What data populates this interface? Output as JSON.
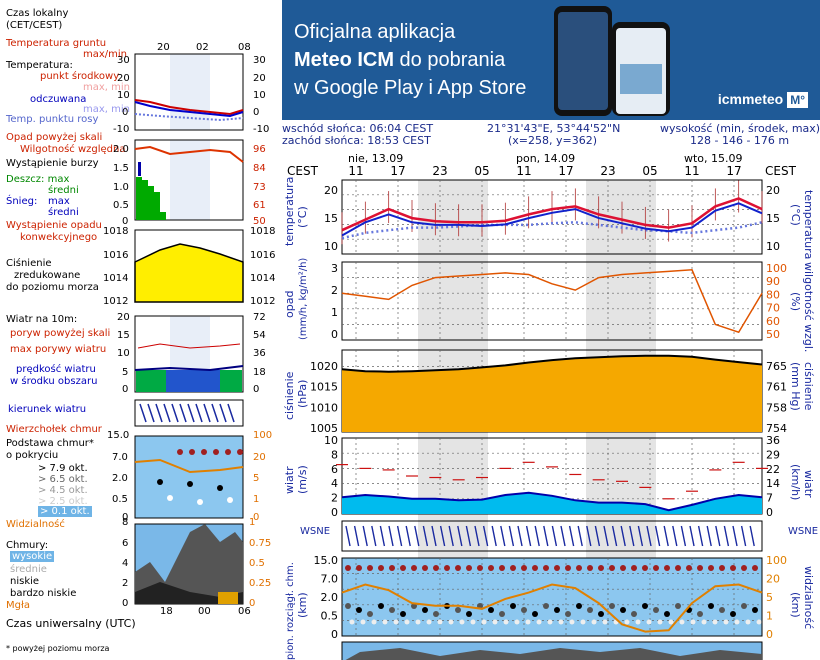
{
  "banner": {
    "line1": "Oficjalna aplikacja",
    "line2_bold": "Meteo ICM",
    "line2_rest": " do pobrania",
    "line3": "w Google Play i App Store",
    "logo": "icmmeteo",
    "logo_badge": "M°"
  },
  "info": {
    "sunrise": "wschód słońca: 06:04 CEST",
    "sunset": "zachód słońca: 18:53 CEST",
    "coords": "21°31'43\"E, 53°44'52\"N",
    "grid": "(x=258, y=362)",
    "elev_title": "wysokość (min, środek, max)",
    "elev": "128 - 146 - 176 m"
  },
  "legend": {
    "local_time": "Czas lokalny",
    "local_time2": "(CET/CEST)",
    "local_ticks": [
      "20",
      "02",
      "08"
    ],
    "ground_temp": "Temperatura gruntu",
    "max_min": "max/min",
    "temperature": "Temperatura:",
    "mid_point": "punkt środkowy",
    "max_min2": "max, min",
    "felt": "odczuwana",
    "max_min3": "max, min",
    "dew": "Temp. punktu rosy",
    "rain_above": "Opad powyżej skali",
    "humidity": "Wilgotność względna",
    "storm": "Wystąpienie burzy",
    "rain": "Deszcz: max",
    "rain_mid": "średni",
    "snow": "Śnieg:",
    "snow_max": "max",
    "snow_mid": "średni",
    "conv": "Wystąpienie opadu",
    "conv2": "konwekcyjnego",
    "pressure": "Ciśnienie",
    "pressure2": "zredukowane",
    "pressure3": "do poziomu morza",
    "wind10": "Wiatr na 10m:",
    "gust_above": "poryw powyżej skali",
    "gust_max": "max porywy wiatru",
    "wind_speed": "prędkość wiatru",
    "wind_speed2": "w środku obszaru",
    "wind_dir": "kierunek wiatru",
    "cloud_top": "Wierzchołek chmur",
    "cloud_base": "Podstawa chmur*",
    "cover": "o pokryciu",
    "o79": "> 7.9 okt.",
    "o65": "> 6.5 okt.",
    "o45": "> 4.5 okt.",
    "o25": "> 2.5 okt.",
    "o01": "> 0.1 okt.",
    "visibility": "Widzialność",
    "clouds": "Chmury:",
    "high": "wysokie",
    "mid": "średnie",
    "low": "niskie",
    "vlow": "bardzo niskie",
    "fog": "Mgła",
    "utc": "Czas uniwersalny (UTC)",
    "utc_ticks": [
      "18",
      "00",
      "06"
    ],
    "footnote": "* powyżej poziomu morza"
  },
  "legend_axes": {
    "temp_l": [
      "30",
      "20",
      "10",
      "0",
      "-10"
    ],
    "temp_r": [
      "30",
      "20",
      "10",
      "0",
      "-10"
    ],
    "rain_l": [
      "2.0",
      "1.5",
      "1.0",
      "0.5",
      "0"
    ],
    "hum_r": [
      "96",
      "84",
      "73",
      "61",
      "50"
    ],
    "pres_l": [
      "1018",
      "1016",
      "1014",
      "1012"
    ],
    "pres_r": [
      "1018",
      "1016",
      "1014",
      "1012"
    ],
    "wind_l": [
      "20",
      "15",
      "10",
      "5",
      "0"
    ],
    "wind_r": [
      "72",
      "54",
      "36",
      "18",
      "0"
    ],
    "cb_l": [
      "15.0",
      "7.0",
      "2.0",
      "0.5",
      "0"
    ],
    "vis_r": [
      "100",
      "20",
      "5",
      "1",
      "0"
    ],
    "cl_l": [
      "8",
      "6",
      "4",
      "2",
      "0"
    ],
    "cl_r": [
      "1",
      "0.75",
      "0.5",
      "0.25",
      "0"
    ]
  },
  "header": {
    "cest_left": "CEST",
    "cest_right": "CEST",
    "days": [
      "nie, 13.09",
      "pon, 14.09",
      "wto, 15.09"
    ],
    "hours": [
      "11",
      "17",
      "23",
      "05",
      "11",
      "17",
      "23",
      "05",
      "11",
      "17"
    ]
  },
  "panels": {
    "temp": {
      "label": "temperatura",
      "unit": "(°C)",
      "ticks": [
        "20",
        "15",
        "10"
      ]
    },
    "rain": {
      "label": "opad",
      "unit": "(mm/h, kg/m²/h)",
      "ticks": [
        "3",
        "2",
        "1",
        "0"
      ],
      "label_r": "wilgotność wzgl.",
      "unit_r": "(%)",
      "ticks_r": [
        "100",
        "90",
        "80",
        "70",
        "60",
        "50"
      ]
    },
    "pres": {
      "label": "ciśnienie",
      "unit": "(hPa)",
      "ticks": [
        "1020",
        "1015",
        "1010",
        "1005"
      ],
      "label_r": "ciśnienie",
      "unit_r": "(mm Hg)",
      "ticks_r": [
        "765",
        "761",
        "758",
        "754"
      ]
    },
    "wind": {
      "label": "wiatr",
      "unit": "(m/s)",
      "ticks": [
        "10",
        "8",
        "6",
        "4",
        "2",
        "0"
      ],
      "unit_r": "(km/h)",
      "label_r": "wiatr",
      "ticks_r": [
        "36",
        "29",
        "22",
        "14",
        "7",
        "0"
      ]
    },
    "wdir": {
      "compass": "WSNE"
    },
    "cb": {
      "label": "pion. rozciągł. chm.",
      "unit": "(km)",
      "ticks": [
        "15.0",
        "7.0",
        "2.0",
        "0.5",
        "0"
      ],
      "label_r": "widzialność",
      "unit_r": "(km)",
      "ticks_r": [
        "100",
        "20",
        "5",
        "1",
        "0"
      ]
    }
  },
  "chart_data": [
    {
      "type": "line",
      "title": "temperatura",
      "ylabel": "(°C)",
      "ylim": [
        8,
        22
      ],
      "x": [
        "11",
        "14",
        "17",
        "20",
        "23",
        "02",
        "05",
        "08",
        "11",
        "14",
        "17",
        "20",
        "23",
        "02",
        "05",
        "08",
        "11",
        "14",
        "17"
      ],
      "series": [
        {
          "name": "punkt środkowy",
          "values": [
            12.5,
            14.5,
            16.5,
            14.8,
            14.2,
            14.0,
            14.0,
            14.3,
            15.5,
            16.5,
            17.0,
            15.5,
            14.5,
            13.5,
            13.0,
            13.8,
            17.0,
            18.5,
            16.5
          ]
        },
        {
          "name": "odczuwana",
          "values": [
            11.5,
            14.0,
            15.5,
            14.0,
            13.5,
            13.5,
            13.3,
            13.6,
            14.8,
            15.8,
            16.5,
            14.8,
            13.8,
            12.8,
            12.3,
            13.0,
            16.2,
            17.6,
            15.7
          ]
        },
        {
          "name": "Temp. punktu rosy",
          "values": [
            11.0,
            12.0,
            12.5,
            13.0,
            13.0,
            13.2,
            13.5,
            13.5,
            13.5,
            13.8,
            14.0,
            13.5,
            13.0,
            12.5,
            12.3,
            12.0,
            12.5,
            13.0,
            14.0
          ]
        }
      ]
    },
    {
      "type": "line",
      "title": "opad / wilgotność wzgl.",
      "ylim": [
        0,
        3.3
      ],
      "x": [
        "11",
        "14",
        "17",
        "20",
        "23",
        "02",
        "05",
        "08",
        "11",
        "14",
        "17",
        "20",
        "23",
        "02",
        "05",
        "08",
        "11",
        "14",
        "17"
      ],
      "series": [
        {
          "name": "Wilgotność względna",
          "values": [
            80,
            78,
            76,
            85,
            90,
            91,
            92,
            93,
            92,
            86,
            82,
            90,
            92,
            93,
            94,
            95,
            60,
            55,
            80
          ]
        }
      ]
    },
    {
      "type": "area",
      "title": "ciśnienie",
      "ylabel": "(hPa)",
      "ylim": [
        1005,
        1022
      ],
      "x": [
        "11",
        "14",
        "17",
        "20",
        "23",
        "02",
        "05",
        "08",
        "11",
        "14",
        "17",
        "20",
        "23",
        "02",
        "05",
        "08",
        "11",
        "14",
        "17"
      ],
      "values": [
        1018,
        1017.6,
        1017.5,
        1017.6,
        1017.8,
        1018.0,
        1018.4,
        1018.8,
        1019.4,
        1019.9,
        1020.3,
        1020.5,
        1020.7,
        1020.8,
        1020.8,
        1020.6,
        1020.0,
        1019.5,
        1019.0
      ]
    },
    {
      "type": "area",
      "title": "wiatr",
      "ylabel": "(m/s)",
      "ylim": [
        0,
        10
      ],
      "x": [
        "11",
        "14",
        "17",
        "20",
        "23",
        "02",
        "05",
        "08",
        "11",
        "14",
        "17",
        "20",
        "23",
        "02",
        "05",
        "08",
        "11",
        "14",
        "17"
      ],
      "series": [
        {
          "name": "prędkość wiatru",
          "values": [
            2.2,
            2.5,
            2.3,
            2.0,
            2.0,
            1.8,
            1.9,
            2.5,
            2.8,
            2.4,
            1.8,
            1.5,
            1.5,
            1.3,
            0.5,
            1.2,
            2.0,
            2.5,
            2.2
          ]
        },
        {
          "name": "max porywy wiatru",
          "values": [
            6.5,
            6.0,
            5.8,
            5.0,
            4.8,
            4.5,
            4.8,
            6.0,
            6.8,
            6.2,
            5.2,
            4.5,
            4.3,
            3.5,
            2.0,
            3.0,
            5.8,
            6.8,
            6.0
          ]
        }
      ]
    },
    {
      "type": "line",
      "title": "pion. rozciągł. chm. / widzialność",
      "ylabel": "(km)",
      "x": [
        "11",
        "14",
        "17",
        "20",
        "23",
        "02",
        "05",
        "08",
        "11",
        "14",
        "17",
        "20",
        "23",
        "02",
        "05",
        "08",
        "11",
        "14",
        "17"
      ],
      "series": [
        {
          "name": "Widzialność",
          "values": [
            12,
            20,
            14,
            6,
            5,
            5,
            4,
            8,
            12,
            20,
            16,
            6,
            1,
            0.3,
            0.4,
            6,
            18,
            20,
            12
          ]
        }
      ]
    }
  ]
}
